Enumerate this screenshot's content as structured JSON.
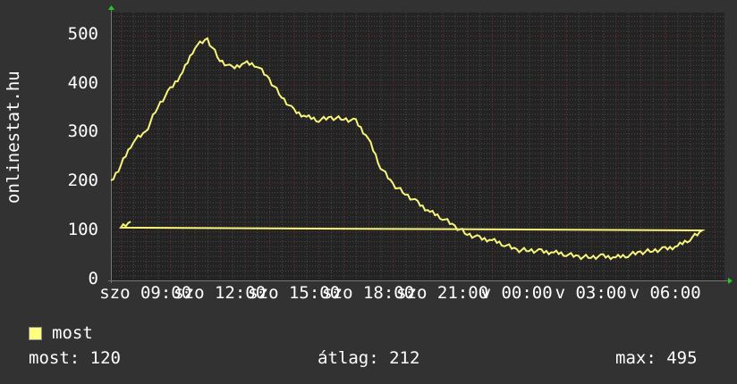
{
  "chart_data": {
    "type": "line",
    "ylabel": "onlinestat.hu",
    "ylim": [
      0,
      547
    ],
    "yticks": [
      0,
      100,
      200,
      300,
      400,
      500
    ],
    "ytick_labels": [
      "0",
      "100",
      "200",
      "300",
      "400",
      "500"
    ],
    "xlim": [
      "szo 07:36",
      "v 08:24"
    ],
    "xticks": [
      "szo 09:00",
      "szo 12:00",
      "szo 15:00",
      "szo 18:00",
      "szo 21:00",
      "v 00:00",
      "v 03:00",
      "v 06:00"
    ],
    "grid": true,
    "colors": {
      "background": "#323232",
      "plot": "#232323",
      "line": "#f7f57a",
      "minor_grid": "#4a4a4a",
      "major_grid": "#6e3434",
      "arrow": "#22cc22"
    },
    "series": [
      {
        "name": "most",
        "x": [
          "07:36",
          "08:00",
          "08:30",
          "09:00",
          "09:30",
          "10:00",
          "10:30",
          "11:00",
          "11:30",
          "12:00",
          "12:30",
          "13:00",
          "13:30",
          "14:00",
          "14:30",
          "15:00",
          "15:30",
          "16:00",
          "16:30",
          "17:00",
          "17:30",
          "18:00",
          "18:30",
          "19:00",
          "19:30",
          "20:00",
          "20:30",
          "21:00",
          "21:30",
          "22:00",
          "22:30",
          "23:00",
          "23:30",
          "00:00",
          "00:30",
          "01:00",
          "01:30",
          "02:00",
          "02:30",
          "03:00",
          "03:30",
          "04:00",
          "04:30",
          "05:00",
          "05:30",
          "06:00",
          "06:30",
          "07:00",
          "07:30",
          "08:00",
          "08:24"
        ],
        "values": [
          200,
          235,
          285,
          302,
          356,
          390,
          425,
          478,
          492,
          450,
          433,
          444,
          440,
          410,
          375,
          346,
          334,
          328,
          332,
          330,
          325,
          290,
          232,
          196,
          177,
          158,
          140,
          128,
          110,
          95,
          86,
          82,
          74,
          62,
          62,
          59,
          57,
          54,
          48,
          48,
          49,
          47,
          52,
          57,
          61,
          64,
          70,
          85,
          100,
          110,
          120
        ]
      }
    ]
  },
  "legend": {
    "label": "most",
    "color": "#ffff80"
  },
  "stats": {
    "current": "most: 120",
    "average": "átlag: 212",
    "max": "max: 495"
  }
}
